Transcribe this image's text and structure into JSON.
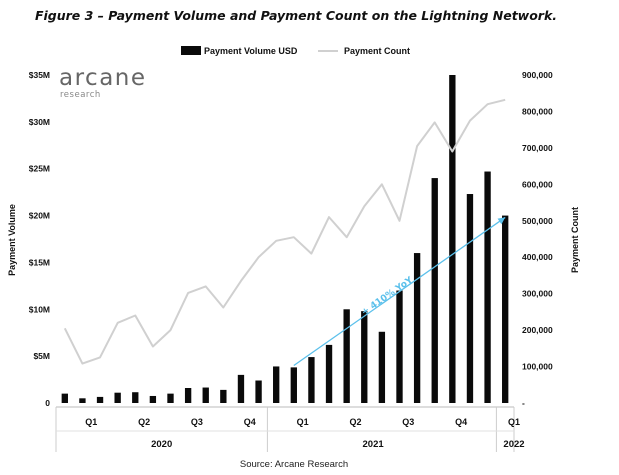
{
  "chart_data": {
    "type": "bar",
    "title": "Figure 3 – Payment Volume and Payment Count on the Lightning Network.",
    "source": "Source: Arcane Research",
    "logo": {
      "name": "arcane",
      "sub": "research"
    },
    "ylabel": "Payment Volume",
    "y2label": "Payment Count",
    "ylim": [
      0,
      35000000
    ],
    "y2lim": [
      0,
      900000
    ],
    "yticks": [
      "0",
      "$5M",
      "$10M",
      "$15M",
      "$20M",
      "$25M",
      "$30M",
      "$35M"
    ],
    "y2ticks": [
      "-",
      "100,000",
      "200,000",
      "300,000",
      "400,000",
      "500,000",
      "600,000",
      "700,000",
      "800,000",
      "900,000"
    ],
    "quarter_labels": [
      "Q1",
      "Q2",
      "Q3",
      "Q4",
      "Q1",
      "Q2",
      "Q3",
      "Q4",
      "Q1"
    ],
    "quarter_positions": [
      1.5,
      4.5,
      7.5,
      10.5,
      13.5,
      16.5,
      19.5,
      22.5,
      25.5
    ],
    "year_labels": [
      "2020",
      "2021",
      "2022"
    ],
    "year_positions": [
      5.5,
      17.5,
      25.5
    ],
    "year_separators": [
      11.5,
      24.5
    ],
    "x": [
      0,
      1,
      2,
      3,
      4,
      5,
      6,
      7,
      8,
      9,
      10,
      11,
      12,
      13,
      14,
      15,
      16,
      17,
      18,
      19,
      20,
      21,
      22,
      23,
      24,
      25
    ],
    "grid": false,
    "legend_position": "top-center",
    "series": [
      {
        "name": "Payment Volume USD",
        "type": "bar",
        "axis": "left",
        "color": "#0a0a0a",
        "values": [
          1000000,
          500000,
          650000,
          1100000,
          1150000,
          750000,
          1000000,
          1600000,
          1650000,
          1400000,
          3000000,
          2400000,
          3900000,
          3800000,
          4900000,
          6200000,
          10000000,
          9800000,
          7600000,
          12000000,
          16000000,
          24000000,
          35000000,
          22300000,
          24700000,
          20000000
        ]
      },
      {
        "name": "Payment Count",
        "type": "line",
        "axis": "right",
        "color": "#d0d0d0",
        "values": [
          205000,
          108000,
          125000,
          220000,
          240000,
          155000,
          200000,
          302000,
          320000,
          262000,
          335000,
          400000,
          445000,
          455000,
          410000,
          510000,
          455000,
          540000,
          600000,
          500000,
          705000,
          770000,
          690000,
          775000,
          820000,
          832000
        ]
      }
    ],
    "annotations": [
      {
        "text": "+ 410% YoY",
        "from": [
          13,
          4000000
        ],
        "to": [
          25,
          19800000
        ],
        "color": "#5bc0eb"
      }
    ]
  }
}
